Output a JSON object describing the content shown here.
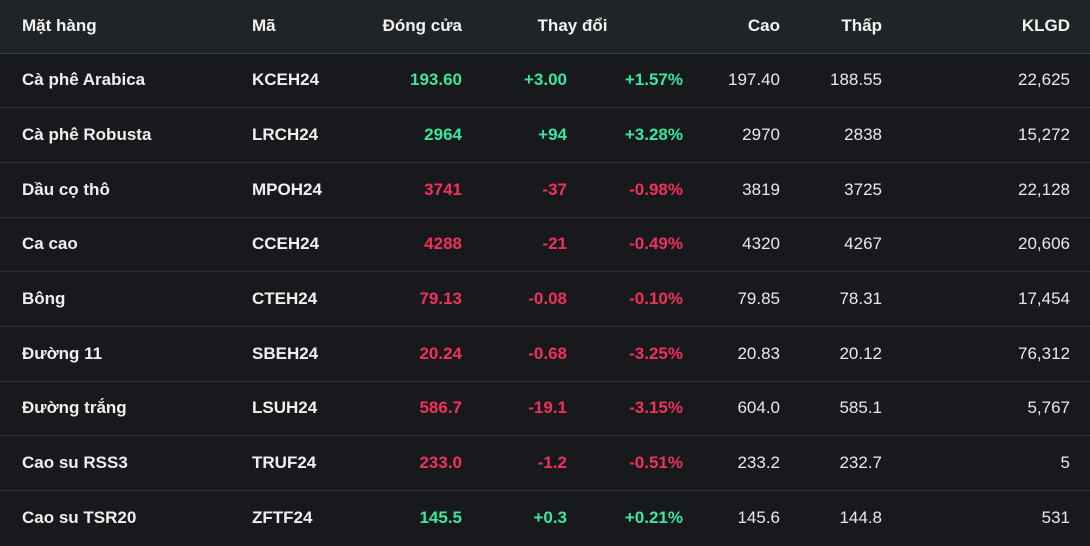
{
  "header": {
    "name": "Mặt hàng",
    "code": "Mã",
    "close": "Đóng cửa",
    "change": "Thay đổi",
    "high": "Cao",
    "low": "Thấp",
    "volume": "KLGD"
  },
  "rows": [
    {
      "name": "Cà phê Arabica",
      "code": "KCEH24",
      "close": "193.60",
      "change": "+3.00",
      "change_pct": "+1.57%",
      "high": "197.40",
      "low": "188.55",
      "volume": "22,625",
      "direction": "up"
    },
    {
      "name": "Cà phê Robusta",
      "code": "LRCH24",
      "close": "2964",
      "change": "+94",
      "change_pct": "+3.28%",
      "high": "2970",
      "low": "2838",
      "volume": "15,272",
      "direction": "up"
    },
    {
      "name": "Dầu cọ thô",
      "code": "MPOH24",
      "close": "3741",
      "change": "-37",
      "change_pct": "-0.98%",
      "high": "3819",
      "low": "3725",
      "volume": "22,128",
      "direction": "down"
    },
    {
      "name": "Ca cao",
      "code": "CCEH24",
      "close": "4288",
      "change": "-21",
      "change_pct": "-0.49%",
      "high": "4320",
      "low": "4267",
      "volume": "20,606",
      "direction": "down"
    },
    {
      "name": "Bông",
      "code": "CTEH24",
      "close": "79.13",
      "change": "-0.08",
      "change_pct": "-0.10%",
      "high": "79.85",
      "low": "78.31",
      "volume": "17,454",
      "direction": "down"
    },
    {
      "name": "Đường 11",
      "code": "SBEH24",
      "close": "20.24",
      "change": "-0.68",
      "change_pct": "-3.25%",
      "high": "20.83",
      "low": "20.12",
      "volume": "76,312",
      "direction": "down"
    },
    {
      "name": "Đường trắng",
      "code": "LSUH24",
      "close": "586.7",
      "change": "-19.1",
      "change_pct": "-3.15%",
      "high": "604.0",
      "low": "585.1",
      "volume": "5,767",
      "direction": "down"
    },
    {
      "name": "Cao su RSS3",
      "code": "TRUF24",
      "close": "233.0",
      "change": "-1.2",
      "change_pct": "-0.51%",
      "high": "233.2",
      "low": "232.7",
      "volume": "5",
      "direction": "down"
    },
    {
      "name": "Cao su TSR20",
      "code": "ZFTF24",
      "close": "145.5",
      "change": "+0.3",
      "change_pct": "+0.21%",
      "high": "145.6",
      "low": "144.8",
      "volume": "531",
      "direction": "up"
    }
  ],
  "colors": {
    "up": "#3de69e",
    "down": "#f0315c",
    "header_bg": "#202426",
    "row_bg": "#17191c",
    "divider": "#2c2f33",
    "header_divider": "#3c3f38",
    "header_text": "#f2f2f2",
    "text": "#e9e9ea"
  }
}
